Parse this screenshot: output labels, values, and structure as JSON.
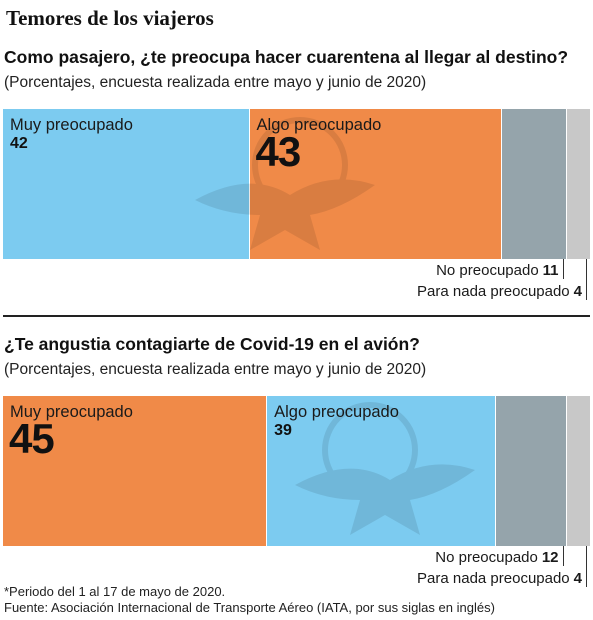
{
  "title": "Temores de los viajeros",
  "colors": {
    "muy": "#7ccbf0",
    "algo": "#f08a48",
    "no": "#95a4ab",
    "nada": "#c8c8c8"
  },
  "chart_data": [
    {
      "type": "bar",
      "stacked": true,
      "title": "Como pasajero, ¿te preocupa hacer cuarentena al llegar al destino?",
      "subtitle": "(Porcentajes, encuesta realizada entre mayo y junio de 2020)",
      "unit": "%",
      "series": [
        {
          "name": "Muy preocupado",
          "value": 42,
          "label": "42",
          "color": "#7ccbf0"
        },
        {
          "name": "Algo preocupado",
          "value": 43,
          "label": "43",
          "color": "#f08a48"
        },
        {
          "name": "No preocupado",
          "value": 11,
          "label": "11",
          "color": "#95a4ab"
        },
        {
          "name": "Para nada preocupado",
          "value": 4,
          "label": "4",
          "color": "#c8c8c8"
        }
      ]
    },
    {
      "type": "bar",
      "stacked": true,
      "title": "¿Te angustia contagiarte de Covid-19 en el avión?",
      "subtitle": "(Porcentajes, encuesta realizada entre mayo y junio de 2020)",
      "unit": "%",
      "series": [
        {
          "name": "Muy preocupado",
          "value": 45,
          "label": "45",
          "color": "#f08a48"
        },
        {
          "name": "Algo preocupado",
          "value": 39,
          "label": "39",
          "color": "#7ccbf0"
        },
        {
          "name": "No preocupado",
          "value": 12,
          "label": "12",
          "color": "#95a4ab"
        },
        {
          "name": "Para nada preocupado",
          "value": 4,
          "label": "4",
          "color": "#c8c8c8"
        }
      ]
    }
  ],
  "footnotes": {
    "period": "*Periodo del 1 al 17 de mayo de 2020.",
    "source": "Fuente: Asociación Internacional de Transporte Aéreo (IATA, por sus siglas en inglés)"
  }
}
